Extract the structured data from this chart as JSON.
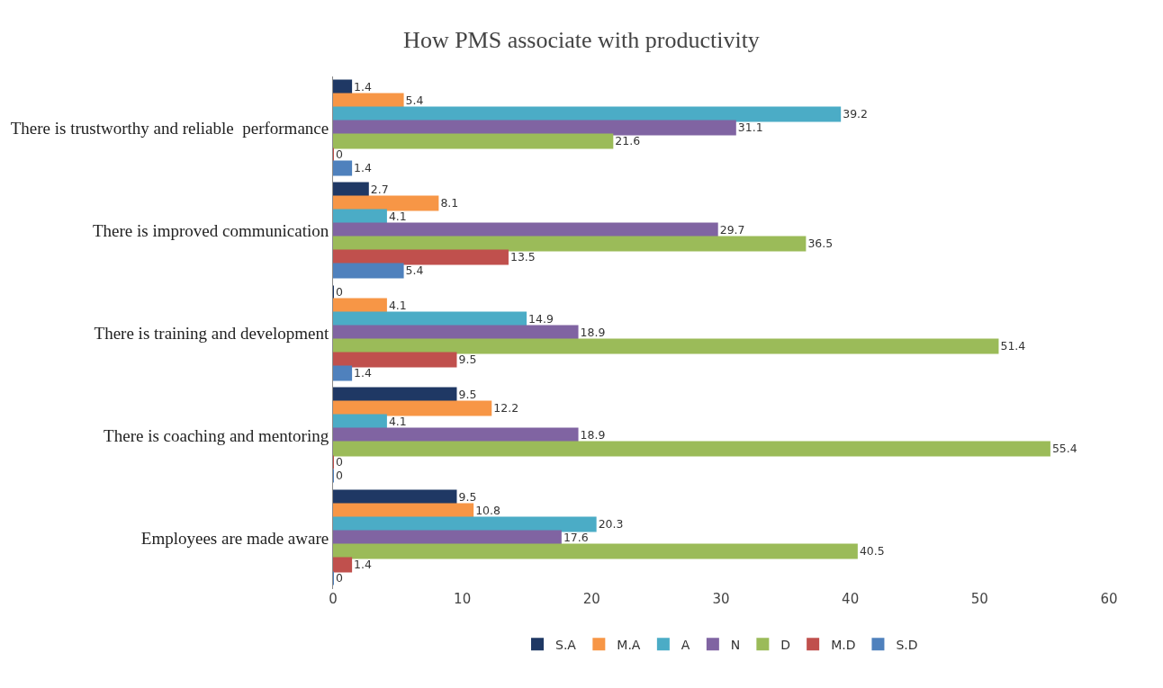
{
  "chart_data": {
    "type": "bar",
    "orientation": "horizontal",
    "title": "How PMS associate with productivity",
    "categories": [
      "There is trustworthy and reliable  performance",
      "There is improved communication",
      "There is training and development",
      "There is coaching and mentoring",
      "Employees are made aware"
    ],
    "series": [
      {
        "name": "S.A",
        "color": "#1f3864",
        "values": [
          1.4,
          2.7,
          0,
          9.5,
          9.5
        ]
      },
      {
        "name": "M.A",
        "color": "#f79646",
        "values": [
          5.4,
          8.1,
          4.1,
          12.2,
          10.8
        ]
      },
      {
        "name": "A",
        "color": "#4bacc6",
        "values": [
          39.2,
          4.1,
          14.9,
          4.1,
          20.3
        ]
      },
      {
        "name": "N",
        "color": "#8064a2",
        "values": [
          31.1,
          29.7,
          18.9,
          18.9,
          17.6
        ]
      },
      {
        "name": "D",
        "color": "#9bbb59",
        "values": [
          21.6,
          36.5,
          51.4,
          55.4,
          40.5
        ]
      },
      {
        "name": "M.D",
        "color": "#c0504d",
        "values": [
          0,
          13.5,
          9.5,
          0,
          1.4
        ]
      },
      {
        "name": "S.D",
        "color": "#4f81bd",
        "values": [
          1.4,
          5.4,
          1.4,
          0,
          0
        ]
      }
    ],
    "xlim": [
      0,
      60
    ],
    "xticks": [
      0,
      10,
      20,
      30,
      40,
      50,
      60
    ],
    "data_labels": true,
    "legend": "bottom"
  }
}
